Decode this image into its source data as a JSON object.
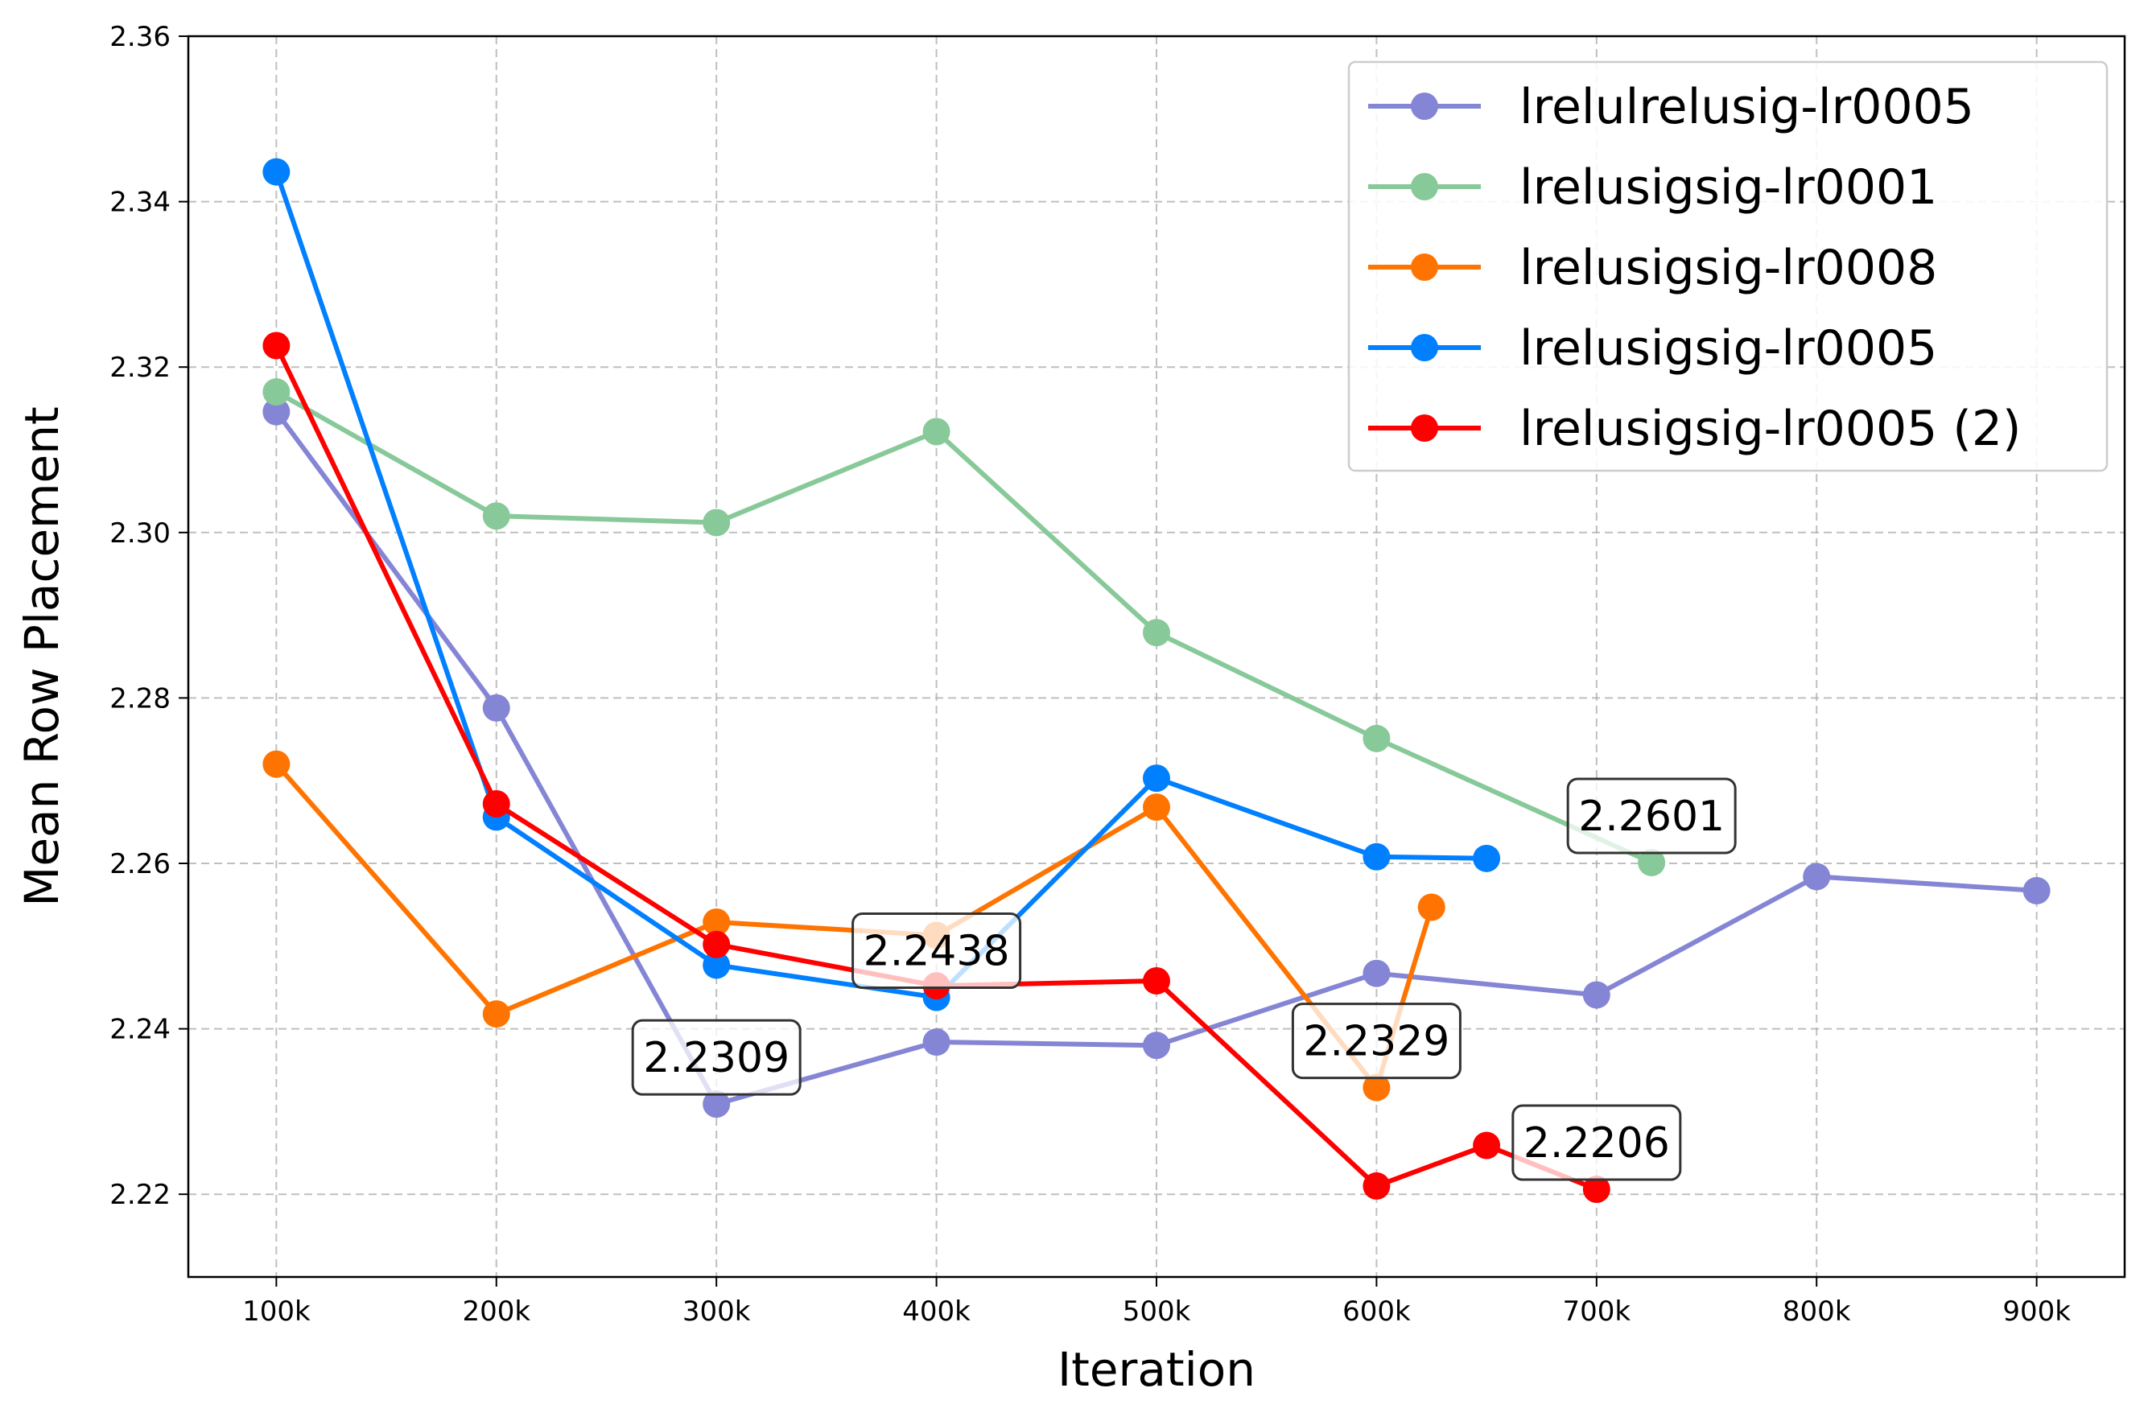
{
  "chart_data": {
    "type": "line",
    "title": "",
    "xlabel": "Iteration",
    "ylabel": "Mean Row Placement",
    "xlim": [
      60000,
      940000
    ],
    "ylim": [
      2.21,
      2.36
    ],
    "xticks": [
      100000,
      200000,
      300000,
      400000,
      500000,
      600000,
      700000,
      800000,
      900000
    ],
    "xtick_labels": [
      "100k",
      "200k",
      "300k",
      "400k",
      "500k",
      "600k",
      "700k",
      "800k",
      "900k"
    ],
    "yticks": [
      2.22,
      2.24,
      2.26,
      2.28,
      2.3,
      2.32,
      2.34,
      2.36
    ],
    "ytick_labels": [
      "2.22",
      "2.24",
      "2.26",
      "2.28",
      "2.30",
      "2.32",
      "2.34",
      "2.36"
    ],
    "grid": true,
    "legend_position": "top-right",
    "series": [
      {
        "name": "lrelulrelusig-lr0005",
        "color": "#8585d6",
        "x": [
          100000,
          200000,
          300000,
          400000,
          500000,
          600000,
          700000,
          800000,
          900000
        ],
        "y": [
          2.3146,
          2.2788,
          2.2309,
          2.2384,
          2.238,
          2.2467,
          2.2441,
          2.2584,
          2.2567
        ]
      },
      {
        "name": "lrelusigsig-lr0001",
        "color": "#88c999",
        "x": [
          100000,
          200000,
          300000,
          400000,
          500000,
          600000,
          725000
        ],
        "y": [
          2.317,
          2.302,
          2.3012,
          2.3122,
          2.2879,
          2.2751,
          2.2601
        ]
      },
      {
        "name": "lrelusigsig-lr0008",
        "color": "#ff7400",
        "x": [
          100000,
          200000,
          300000,
          400000,
          500000,
          600000,
          625000
        ],
        "y": [
          2.272,
          2.2418,
          2.2529,
          2.2513,
          2.2668,
          2.2329,
          2.2547
        ]
      },
      {
        "name": "lrelusigsig-lr0005",
        "color": "#0080ff",
        "x": [
          100000,
          200000,
          300000,
          400000,
          500000,
          600000,
          650000
        ],
        "y": [
          2.3436,
          2.2656,
          2.2477,
          2.2438,
          2.2703,
          2.2608,
          2.2606
        ]
      },
      {
        "name": "lrelusigsig-lr0005 (2)",
        "color": "#ff0000",
        "x": [
          100000,
          200000,
          300000,
          400000,
          500000,
          600000,
          650000,
          700000
        ],
        "y": [
          2.3226,
          2.2672,
          2.2502,
          2.2452,
          2.2458,
          2.221,
          2.2259,
          2.2206
        ]
      }
    ],
    "annotations": [
      {
        "text": "2.2309",
        "x": 300000,
        "y": 2.2309
      },
      {
        "text": "2.2438",
        "x": 400000,
        "y": 2.2438
      },
      {
        "text": "2.2329",
        "x": 600000,
        "y": 2.2329
      },
      {
        "text": "2.2601",
        "x": 725000,
        "y": 2.2601
      },
      {
        "text": "2.2206",
        "x": 700000,
        "y": 2.2206
      }
    ]
  }
}
